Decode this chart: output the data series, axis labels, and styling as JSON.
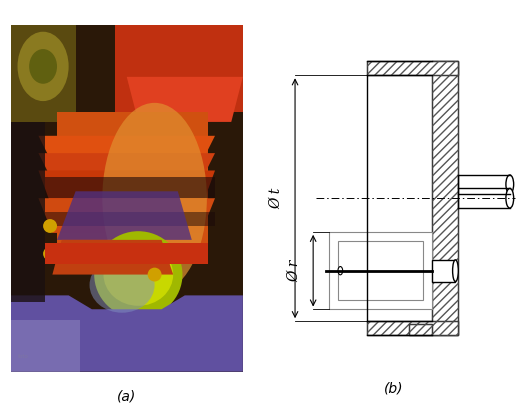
{
  "label_a": "(a)",
  "label_b": "(b)",
  "label_phi_t": "Ø t",
  "label_phi_r": "Ø r",
  "bg_color": "#ffffff",
  "line_color": "#000000",
  "figure_width": 5.28,
  "figure_height": 4.13,
  "dpi": 100,
  "photo_colors": {
    "bg_top": "#3a2a10",
    "orange_main": "#c84010",
    "yellow_orange": "#d07820",
    "yellow_green": "#b8c000",
    "blue_purple": "#6040a0",
    "light_purple": "#9080b0",
    "dark": "#1a1008"
  }
}
